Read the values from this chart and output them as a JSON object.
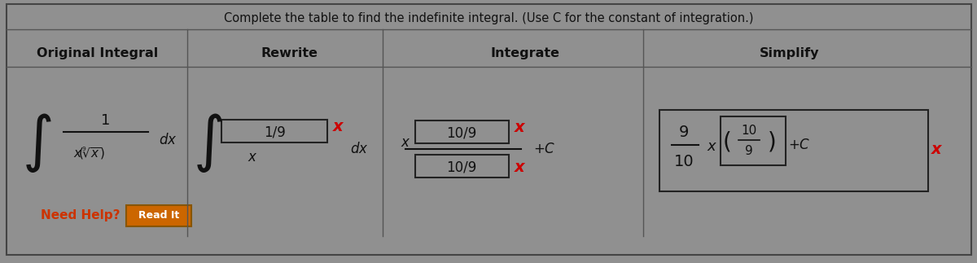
{
  "bg_color": "#909090",
  "panel_color": "#909090",
  "text_color": "#111111",
  "header_color": "#111111",
  "title_text": "Complete the table to find the indefinite integral. (Use C for the constant of integration.)",
  "col_headers": [
    "Original Integral",
    "Rewrite",
    "Integrate",
    "Simplify"
  ],
  "box_facecolor": "#909090",
  "box_edgecolor": "#222222",
  "red_x_color": "#cc0000",
  "read_it_bg": "#cc6600",
  "need_help_color": "#cc3300",
  "divider_color": "#555555",
  "outer_border_color": "#444444"
}
